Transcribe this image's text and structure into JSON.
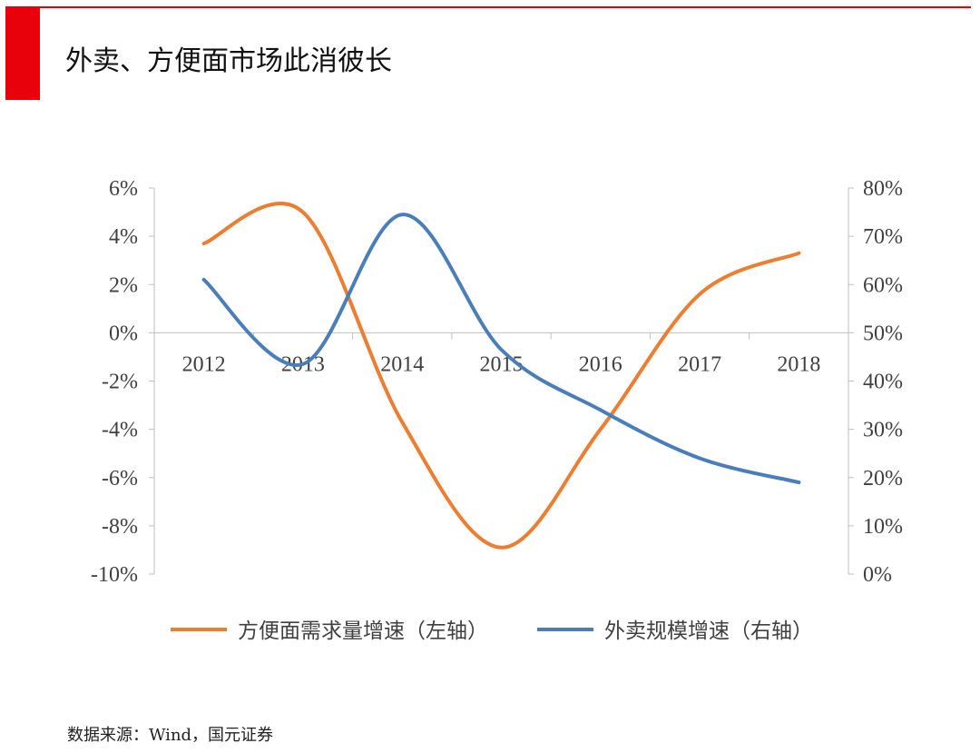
{
  "header": {
    "title": "外卖、方便面市场此消彼长",
    "accent_color": "#e8000b"
  },
  "source_note": "数据来源：Wind，国元证券",
  "chart_data": {
    "type": "line",
    "title": "",
    "xlabel": "",
    "ylabel": "",
    "categories": [
      "2012",
      "2013",
      "2014",
      "2015",
      "2016",
      "2017",
      "2018"
    ],
    "y_left": {
      "lim": [
        -10,
        6
      ],
      "step": 2,
      "ticks": [
        "6%",
        "4%",
        "2%",
        "0%",
        "-2%",
        "-4%",
        "-6%",
        "-8%",
        "-10%"
      ]
    },
    "y_right": {
      "lim": [
        0,
        80
      ],
      "step": 10,
      "ticks": [
        "80%",
        "70%",
        "60%",
        "50%",
        "40%",
        "30%",
        "20%",
        "10%",
        "0%"
      ]
    },
    "series": [
      {
        "name": "方便面需求量增速（左轴）",
        "axis": "left",
        "color": "#ed7d31",
        "values": [
          3.7,
          5.0,
          -3.7,
          -8.9,
          -4.0,
          1.6,
          3.3
        ]
      },
      {
        "name": "外卖规模增速（右轴）",
        "axis": "right",
        "color": "#4a7ebb",
        "values": [
          61.0,
          43.5,
          74.5,
          46.5,
          34.0,
          24.0,
          19.0
        ]
      }
    ],
    "grid": false,
    "legend": "bottom"
  }
}
